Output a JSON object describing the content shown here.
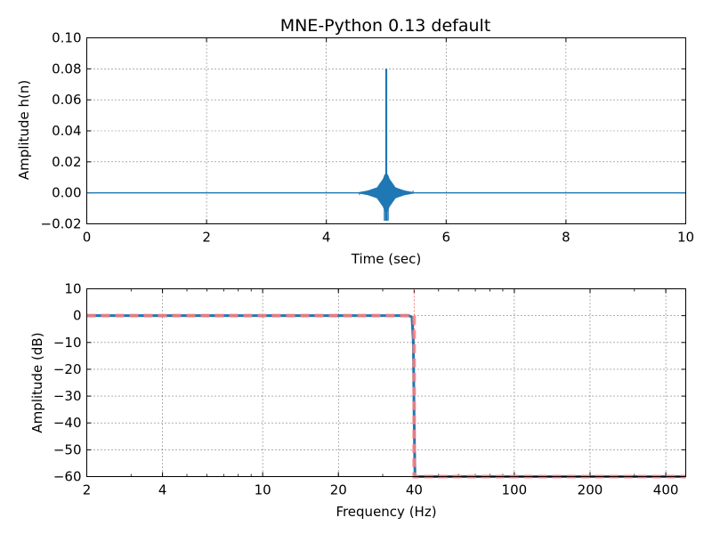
{
  "chart_data": [
    {
      "type": "line",
      "title": "MNE-Python 0.13 default",
      "xlabel": "Time (sec)",
      "ylabel": "Amplitude h(n)",
      "xlim": [
        0,
        10
      ],
      "ylim": [
        -0.02,
        0.1
      ],
      "xticks": [
        0,
        2,
        4,
        6,
        8,
        10
      ],
      "xtick_labels": [
        "0",
        "2",
        "4",
        "6",
        "8",
        "10"
      ],
      "yticks": [
        -0.02,
        0.0,
        0.02,
        0.04,
        0.06,
        0.08,
        0.1
      ],
      "ytick_labels": [
        "−0.02",
        "0.00",
        "0.02",
        "0.04",
        "0.06",
        "0.08",
        "0.10"
      ],
      "grid": true,
      "series": [
        {
          "color": "#1f77b4",
          "impulse_response": {
            "center": 5.0,
            "peak": 0.08,
            "min": -0.018,
            "envelope": [
              [
                4.55,
                0.0004
              ],
              [
                4.7,
                0.0015
              ],
              [
                4.85,
                0.0035
              ],
              [
                4.95,
                0.009
              ],
              [
                4.98,
                0.012
              ],
              [
                5.02,
                0.012
              ],
              [
                5.05,
                0.009
              ],
              [
                5.15,
                0.0035
              ],
              [
                5.3,
                0.0015
              ],
              [
                5.45,
                0.0004
              ]
            ]
          }
        }
      ]
    },
    {
      "type": "line",
      "title": "",
      "xlabel": "Frequency (Hz)",
      "ylabel": "Amplitude (dB)",
      "xscale": "log",
      "xlim": [
        2,
        480
      ],
      "ylim": [
        -60,
        10
      ],
      "xticks": [
        2,
        4,
        10,
        20,
        40,
        100,
        200,
        400
      ],
      "xtick_labels": [
        "2",
        "4",
        "10",
        "20",
        "40",
        "100",
        "200",
        "400"
      ],
      "yticks": [
        -60,
        -50,
        -40,
        -30,
        -20,
        -10,
        0,
        10
      ],
      "ytick_labels": [
        "−60",
        "−50",
        "−40",
        "−30",
        "−20",
        "−10",
        "0",
        "10"
      ],
      "grid": true,
      "cutoff_hz": 40,
      "series": [
        {
          "style": "solid",
          "color": "#1f77b4",
          "x": [
            2,
            38,
            39.2,
            39.7,
            40,
            40.3,
            480
          ],
          "y": [
            0,
            0,
            -0.5,
            -10,
            -40,
            -60,
            -60
          ]
        },
        {
          "style": "dashed",
          "color": "#ff7f7f",
          "x": [
            2,
            40,
            40,
            480
          ],
          "y": [
            0,
            0,
            -60,
            -60
          ]
        }
      ]
    }
  ]
}
